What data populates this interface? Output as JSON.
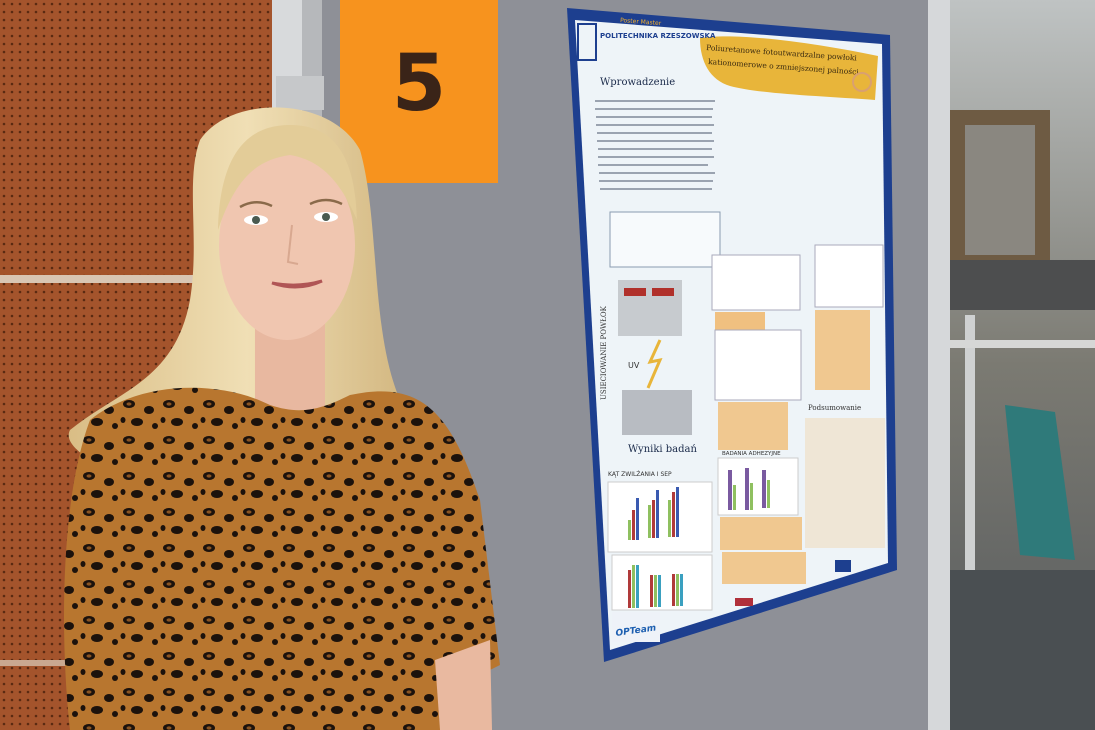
{
  "sign": {
    "number": "5",
    "color": "#f7931e"
  },
  "poster": {
    "institution": "POLITECHNIKA RZESZOWSKA",
    "title_line1": "Poliuretanowe fotoutwardzalne powłoki",
    "title_line2": "kationomerowe o zmniejszonej palności",
    "section_intro": "Wprowadzenie",
    "section_curing": "USIECIOWANIE POWŁOK",
    "uv_label": "UV",
    "section_results": "Wyniki badań",
    "chart1_label": "KĄT ZWILŻANIA I SEP",
    "chart2_label": "BADANIA ADHEZYJNE",
    "section_summary": "Podsumowanie",
    "sponsor": "OPTeam",
    "header_strip": "Poster Master",
    "accent": "#e8b53a",
    "border": "#1d3f8f"
  },
  "colors": {
    "board": "#8d8f96",
    "wood": "#a2522b",
    "hair": "#e5cf9e",
    "top": "#b8762f"
  }
}
